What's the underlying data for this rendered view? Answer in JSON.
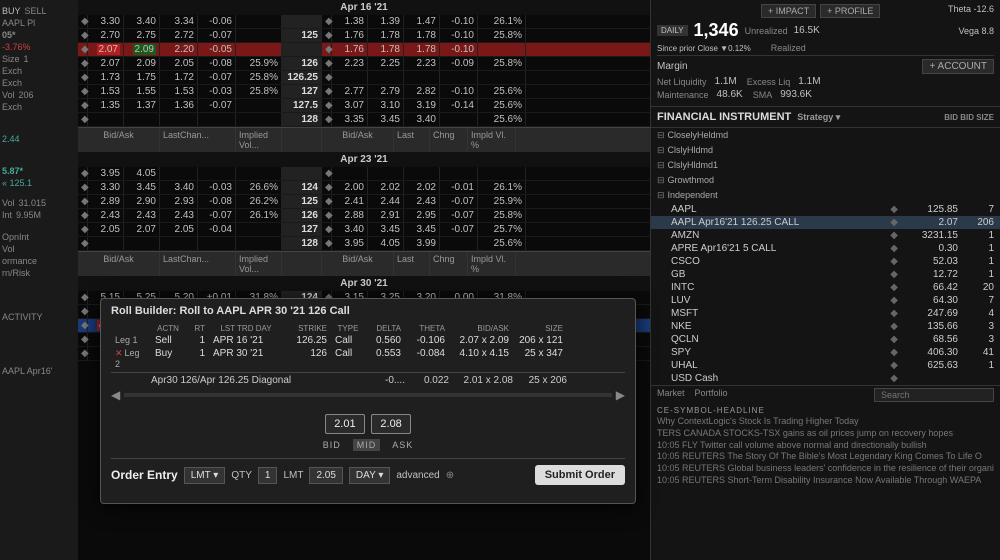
{
  "left": {
    "buy": "BUY",
    "sell": "SELL",
    "ticker": "AAPL Pl",
    "price": "05*",
    "pct": "-3.76%",
    "size_l": "Size",
    "size_v": "1",
    "exc": "Exch",
    "vol": "Vol",
    "volv": "206",
    "exch2": "Exch",
    "px2": "2.44",
    "px3": "5.87*",
    "px4": "« 125.1",
    "volL": "Vol",
    "volV": "31.015",
    "intL": "Int",
    "intV": "9.95M",
    "opn": "OpnInt",
    "vol2": "Vol",
    "perf": "ormance",
    "rr": "rn/Risk",
    "act": "ACTIVITY",
    "foot": "AAPL Apr16'"
  },
  "dates": {
    "d1": "Apr 16 '21",
    "d2": "Apr 23 '21",
    "d3": "Apr 30 '21"
  },
  "hdr": {
    "ba": "Bid/Ask",
    "lc": "LastChan...",
    "iv": "Implied Vol...",
    "last": "Last",
    "chng": "Chng",
    "ivp": "Impld Vl. %"
  },
  "ch1": [
    {
      "b": "3.30",
      "a": "3.40",
      "l": "3.34",
      "c": "-0.06",
      "iv": "",
      "s": "",
      "b2": "1.38",
      "a2": "1.39",
      "l2": "1.47",
      "c2": "-0.10",
      "iv2": "26.1%"
    },
    {
      "b": "2.70",
      "a": "2.75",
      "l": "2.72",
      "c": "-0.07",
      "iv": "",
      "s": "125",
      "b2": "1.76",
      "a2": "1.78",
      "l2": "1.78",
      "c2": "-0.10",
      "iv2": "25.8%"
    },
    {
      "b": "2.21",
      "a": "2.21",
      "l": "2.20",
      "c": "-0.05",
      "iv": "",
      "s": "",
      "b2": "1.76",
      "a2": "1.78",
      "l2": "1.78",
      "c2": "-0.10",
      "iv2": "",
      "hl": "red",
      "bHot": "2.07",
      "aHot": "2.09"
    },
    {
      "b": "2.07",
      "a": "2.09",
      "l": "2.05",
      "c": "-0.08",
      "iv": "25.9%",
      "s": "126",
      "b2": "2.23",
      "a2": "2.25",
      "l2": "2.23",
      "c2": "-0.09",
      "iv2": "25.8%"
    },
    {
      "b": "1.73",
      "a": "1.75",
      "l": "1.72",
      "c": "-0.07",
      "iv": "25.8%",
      "s": "126.25",
      "b2": "",
      "a2": "",
      "l2": "",
      "c2": "",
      "iv2": ""
    },
    {
      "b": "1.53",
      "a": "1.55",
      "l": "1.53",
      "c": "-0.03",
      "iv": "25.8%",
      "s": "127",
      "b2": "2.77",
      "a2": "2.79",
      "l2": "2.82",
      "c2": "-0.10",
      "iv2": "25.6%"
    },
    {
      "b": "1.35",
      "a": "1.37",
      "l": "1.36",
      "c": "-0.07",
      "iv": "",
      "s": "127.5",
      "b2": "3.07",
      "a2": "3.10",
      "l2": "3.19",
      "c2": "-0.14",
      "iv2": "25.6%"
    },
    {
      "b": "",
      "a": "",
      "l": "",
      "c": "",
      "iv": "",
      "s": "128",
      "b2": "3.35",
      "a2": "3.45",
      "l2": "3.40",
      "c2": "",
      "iv2": "25.6%"
    }
  ],
  "ch2": [
    {
      "b": "3.95",
      "a": "4.05",
      "l": "",
      "c": "",
      "iv": "",
      "s": "",
      "b2": "",
      "a2": "",
      "l2": "",
      "c2": "",
      "iv2": ""
    },
    {
      "b": "3.30",
      "a": "3.45",
      "l": "3.40",
      "c": "-0.03",
      "iv": "26.6%",
      "s": "124",
      "b2": "2.00",
      "a2": "2.02",
      "l2": "2.02",
      "c2": "-0.01",
      "iv2": "26.1%"
    },
    {
      "b": "2.89",
      "a": "2.90",
      "l": "2.93",
      "c": "-0.08",
      "iv": "26.2%",
      "s": "125",
      "b2": "2.41",
      "a2": "2.44",
      "l2": "2.43",
      "c2": "-0.07",
      "iv2": "25.9%"
    },
    {
      "b": "2.43",
      "a": "2.43",
      "l": "2.43",
      "c": "-0.07",
      "iv": "26.1%",
      "s": "126",
      "b2": "2.88",
      "a2": "2.91",
      "l2": "2.95",
      "c2": "-0.07",
      "iv2": "25.8%"
    },
    {
      "b": "2.05",
      "a": "2.07",
      "l": "2.05",
      "c": "-0.04",
      "iv": "",
      "s": "127",
      "b2": "3.40",
      "a2": "3.45",
      "l2": "3.45",
      "c2": "-0.07",
      "iv2": "25.7%"
    },
    {
      "b": "",
      "a": "",
      "l": "",
      "c": "",
      "iv": "",
      "s": "128",
      "b2": "3.95",
      "a2": "4.05",
      "l2": "3.99",
      "c2": "",
      "iv2": "25.6%"
    }
  ],
  "ch3": [
    {
      "b": "5.15",
      "a": "5.25",
      "l": "5.20",
      "c": "+0.01",
      "iv": "31.8%",
      "s": "124",
      "b2": "3.15",
      "a2": "3.25",
      "l2": "3.20",
      "c2": "0.00",
      "iv2": "31.8%"
    },
    {
      "b": "4.60",
      "a": "4.70",
      "l": "4.60",
      "c": "-0.07",
      "iv": "31.7%",
      "s": "125",
      "b2": "3.60",
      "a2": "3.65",
      "l2": "3.67",
      "c2": "-0.07",
      "iv2": "31.4%"
    },
    {
      "b": "4.10",
      "a": "4.15",
      "l": "4.10",
      "c": "-0.06",
      "iv": "31.5%",
      "s": "126",
      "b2": "4.05",
      "a2": "4.15",
      "l2": "4.10",
      "c2": "-0.11",
      "iv2": "31.2%",
      "hl": "blue",
      "bHot": "4.10",
      "aHot": "4.15"
    },
    {
      "b": "3.55",
      "a": "3.65",
      "l": "3.60",
      "c": "-0.06",
      "iv": "31.7%",
      "s": "127",
      "b2": "4.50",
      "a2": "4.60",
      "l2": "4.70",
      "c2": "-0.17",
      "iv2": "31%"
    },
    {
      "b": "3.15",
      "a": "3.25",
      "l": "",
      "c": "",
      "iv": "",
      "s": "128",
      "b2": "5.15",
      "a2": "5.25",
      "l2": "",
      "c2": "",
      "iv2": ""
    }
  ],
  "roll": {
    "title": "Roll Builder:  Roll to AAPL APR 30 '21 126 Call",
    "h": {
      "actn": "ACTN",
      "rt": "RT",
      "day": "LST TRD DAY",
      "strk": "STRIKE",
      "type": "TYPE",
      "del": "DELTA",
      "th": "THETA",
      "ba": "BID/ASK",
      "sz": "SIZE"
    },
    "l1": {
      "lbl": "Leg 1",
      "a": "Sell",
      "rt": "1",
      "d": "APR 16 '21",
      "s": "126.25",
      "t": "Call",
      "del": "0.560",
      "th": "-0.106",
      "ba": "2.07 x 2.09",
      "sz": "206 x 121"
    },
    "l2": {
      "lbl": "Leg 2",
      "a": "Buy",
      "rt": "1",
      "d": "APR 30 '21",
      "s": "126",
      "t": "Call",
      "del": "0.553",
      "th": "-0.084",
      "ba": "4.10 x 4.15",
      "sz": "25 x 347"
    },
    "sum": {
      "name": "Apr30 126/Apr 126.25 Diagonal",
      "del": "-0....",
      "th": "0.022",
      "ba": "2.01 x 2.08",
      "sz": "25 x 206"
    },
    "p1": "2.01",
    "p2": "2.08",
    "bid": "BID",
    "mid": "MID",
    "ask": "ASK",
    "oe": {
      "lbl": "Order Entry",
      "lmt": "LMT",
      "qty": "QTY",
      "qtyv": "1",
      "lmt2": "LMT",
      "px": "2.05",
      "day": "DAY",
      "adv": "advanced",
      "sub": "Submit Order"
    }
  },
  "rp": {
    "impact": "+ IMPACT",
    "profile": "+ PROFILE",
    "theta": "Theta",
    "thetav": "-12.6",
    "vega": "Vega",
    "vegav": "8.8",
    "daily": "DAILY",
    "big": "1,346",
    "unr": "Unrealized",
    "unrv": "16.5K",
    "rea": "Realized",
    "since": "Since prior Close ▼",
    "sincev": "0.12%",
    "margin": "Margin",
    "acct": "+ ACCOUNT",
    "netl": "Net Liquidity",
    "netlv": "1.1M",
    "exl": "Excess Liq",
    "exlv": "1.1M",
    "maint": "Maintenance",
    "maintv": "48.6K",
    "sma": "SMA",
    "smav": "993.6K",
    "fi": "FINANCIAL INSTRUMENT",
    "strat": "Strategy ▾",
    "bid": "BID",
    "bsz": "BID SIZE",
    "grps": [
      "CloselyHeldmd",
      "ClslyHldmd",
      "ClslyHldmd1",
      "Growthmod",
      "Independent"
    ],
    "pos": [
      {
        "s": "AAPL",
        "p": "125.85",
        "z": "7"
      },
      {
        "s": "AAPL Apr16'21 126.25 CALL",
        "p": "2.07",
        "z": "206",
        "hl": true
      },
      {
        "s": "AMZN",
        "p": "3231.15",
        "z": "1"
      },
      {
        "s": "APRE Apr16'21 5 CALL",
        "p": "0.30",
        "z": "1"
      },
      {
        "s": "CSCO",
        "p": "52.03",
        "z": "1"
      },
      {
        "s": "GB",
        "p": "12.72",
        "z": "1"
      },
      {
        "s": "INTC",
        "p": "66.42",
        "z": "20"
      },
      {
        "s": "LUV",
        "p": "64.30",
        "z": "7"
      },
      {
        "s": "MSFT",
        "p": "247.69",
        "z": "4"
      },
      {
        "s": "NKE",
        "p": "135.66",
        "z": "3"
      },
      {
        "s": "QCLN",
        "p": "68.56",
        "z": "3"
      },
      {
        "s": "SPY",
        "p": "406.30",
        "z": "41"
      },
      {
        "s": "UHAL",
        "p": "625.63",
        "z": "1"
      },
      {
        "s": "USD Cash",
        "p": "",
        "z": ""
      }
    ],
    "tab1": "Market",
    "tab2": "Portfolio",
    "search": "Search",
    "newsHdr": "CE-SYMBOL-HEADLINE",
    "news": [
      "Why ContextLogic's Stock Is Trading Higher Today",
      "TERS CANADA STOCKS-TSX gains as oil prices jump on recovery hopes",
      "10:05 FLY Twitter call volume above normal and directionally bullish",
      "10:05 REUTERS The Story Of The Bible's Most Legendary King Comes To Life O",
      "10:05 REUTERS Global business leaders' confidence in the resilience of their organization",
      "10:05 REUTERS Short-Term Disability Insurance Now Available Through WAEPA"
    ]
  }
}
